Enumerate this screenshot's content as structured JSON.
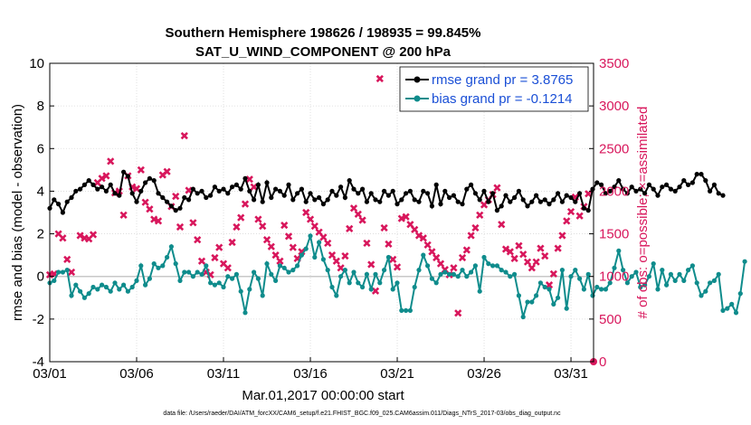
{
  "chart_data": {
    "type": "line",
    "title": "Southern Hemisphere 198626 / 198935 = 99.845%",
    "subtitle": "SAT_U_WIND_COMPONENT @ 200 hPa",
    "xlabel": "Mar.01,2017 00:00:00 start",
    "ylabel": "rmse and bias (model - observation)",
    "y2label": "# of obs: o=possible; ×=assimilated",
    "footer": "data file: /Users/raeder/DAI/ATM_forcXX/CAM6_setup/f.e21.FHIST_BGC.f09_025.CAM6assim.011/Diags_NTrS_2017-03/obs_diag_output.nc",
    "xlim": [
      0,
      31.3
    ],
    "ylim": [
      -4,
      10
    ],
    "y2lim": [
      0,
      3500
    ],
    "x_ticks": [
      0,
      5,
      10,
      15,
      20,
      25,
      30
    ],
    "x_tick_labels": [
      "03/01",
      "03/06",
      "03/11",
      "03/16",
      "03/21",
      "03/26",
      "03/31"
    ],
    "y_ticks": [
      -4,
      -2,
      0,
      2,
      4,
      6,
      8,
      10
    ],
    "y_tick_labels": [
      "-4",
      "-2",
      "0",
      "2",
      "4",
      "6",
      "8",
      "10"
    ],
    "y2_ticks": [
      0,
      500,
      1000,
      1500,
      2000,
      2500,
      3000,
      3500
    ],
    "y2_tick_labels": [
      "0",
      "500",
      "1000",
      "1500",
      "2000",
      "2500",
      "3000",
      "3500"
    ],
    "grid": true,
    "legend_position": "top-right",
    "series": [
      {
        "name": "rmse grand pr = 3.8765",
        "color": "#000000",
        "marker": "circle",
        "step": 0.25,
        "values": [
          3.2,
          3.6,
          3.4,
          3.0,
          3.5,
          3.7,
          4.0,
          4.1,
          4.3,
          4.5,
          4.3,
          4.1,
          4.2,
          4.0,
          4.3,
          3.9,
          3.8,
          4.9,
          4.7,
          3.9,
          3.5,
          4.0,
          4.4,
          4.6,
          4.5,
          3.9,
          3.7,
          3.5,
          3.3,
          3.1,
          3.2,
          3.7,
          3.6,
          4.1,
          3.9,
          4.0,
          3.7,
          3.8,
          4.2,
          4.0,
          4.1,
          3.9,
          4.2,
          4.3,
          4.1,
          4.6,
          4.0,
          3.6,
          4.3,
          3.5,
          4.4,
          3.7,
          4.1,
          4.0,
          3.8,
          4.3,
          3.6,
          3.9,
          4.1,
          3.5,
          3.9,
          3.6,
          3.7,
          3.4,
          3.6,
          4.0,
          3.8,
          4.2,
          3.7,
          4.5,
          4.1,
          3.9,
          4.1,
          3.5,
          3.9,
          3.6,
          3.5,
          4.0,
          3.8,
          4.0,
          3.4,
          3.6,
          3.9,
          4.0,
          3.6,
          3.5,
          4.0,
          3.9,
          3.3,
          4.3,
          3.4,
          4.0,
          3.7,
          3.8,
          3.5,
          3.4,
          4.1,
          4.3,
          3.9,
          3.6,
          4.0,
          3.5,
          3.9,
          3.1,
          3.3,
          3.8,
          3.5,
          3.7,
          4.0,
          3.6,
          3.3,
          3.5,
          3.8,
          3.5,
          3.6,
          3.4,
          3.6,
          3.9,
          3.5,
          3.8,
          3.7,
          3.5,
          3.9,
          3.2,
          3.1,
          4.1,
          4.4,
          4.3,
          3.9,
          4.0,
          4.2,
          4.5,
          4.1,
          3.9,
          4.2,
          4.0,
          4.1,
          3.9,
          4.3,
          4.1,
          3.8,
          4.2,
          4.3,
          4.1,
          4.0,
          4.2,
          4.5,
          4.3,
          4.4,
          4.8,
          4.8,
          4.5,
          4.0,
          4.3,
          3.9,
          3.8
        ]
      },
      {
        "name": "bias grand pr = -0.1214",
        "color": "#0f8c8c",
        "marker": "circle",
        "step": 0.25,
        "values": [
          -0.3,
          -0.2,
          0.2,
          0.2,
          0.3,
          -0.9,
          -0.4,
          -0.7,
          -1.0,
          -0.8,
          -0.5,
          -0.6,
          -0.4,
          -0.5,
          -0.7,
          -0.3,
          -0.6,
          -0.4,
          -0.7,
          -0.5,
          -0.2,
          0.5,
          -0.4,
          -0.1,
          0.6,
          0.4,
          0.5,
          0.9,
          1.4,
          0.6,
          -0.2,
          0.2,
          0.2,
          0.0,
          0.2,
          0.1,
          0.5,
          -0.3,
          -0.4,
          -0.3,
          -0.5,
          0.0,
          -0.1,
          0.1,
          -0.7,
          -1.7,
          -0.6,
          0.2,
          -0.1,
          -0.9,
          0.6,
          0.1,
          -0.2,
          0.5,
          0.4,
          0.2,
          0.3,
          0.5,
          1.0,
          1.3,
          1.9,
          0.9,
          1.6,
          0.8,
          0.3,
          -0.5,
          -0.9,
          0.0,
          0.3,
          -0.3,
          0.2,
          -0.3,
          -0.5,
          0.1,
          -0.6,
          0.1,
          -0.3,
          0.3,
          0.9,
          -0.6,
          -0.3,
          -1.6,
          -1.6,
          -1.6,
          -0.5,
          0.3,
          1.0,
          0.5,
          -0.1,
          -0.3,
          0.1,
          0.2,
          0.1,
          0.1,
          0.0,
          0.3,
          0.0,
          0.2,
          0.5,
          -0.7,
          0.9,
          0.6,
          0.5,
          0.5,
          0.3,
          0.2,
          0.0,
          0.1,
          -0.9,
          -1.9,
          -1.2,
          -1.2,
          -0.9,
          -0.3,
          -0.5,
          -0.6,
          -1.3,
          -1.0,
          0.3,
          -1.5,
          0.0,
          0.3,
          -0.1,
          -0.6,
          0.1,
          -0.9,
          -0.5,
          -0.6,
          -0.6,
          -0.3,
          0.4,
          1.2,
          0.3,
          -0.3,
          0.0,
          0.2,
          -0.5,
          -0.4,
          0.0,
          0.6,
          -0.6,
          0.3,
          -0.4,
          0.1,
          -0.2,
          0.1,
          -0.2,
          0.3,
          0.5,
          -0.3,
          -0.9,
          -0.7,
          -0.3,
          -0.2,
          0.1,
          -1.6,
          -1.5,
          -1.3,
          -1.7,
          -0.8,
          0.7
        ]
      }
    ],
    "obs_possible": {
      "name": "possible",
      "marker": "circle",
      "color": "#d8175c",
      "step": 0.25,
      "values": []
    },
    "obs_assimilated": {
      "name": "assimilated",
      "marker": "x",
      "color": "#d8175c",
      "points": [
        [
          0.0,
          1020
        ],
        [
          0.25,
          1030
        ],
        [
          0.5,
          1500
        ],
        [
          0.75,
          1450
        ],
        [
          1.0,
          1200
        ],
        [
          1.25,
          1050
        ],
        [
          1.75,
          1480
        ],
        [
          2.0,
          1450
        ],
        [
          2.25,
          1440
        ],
        [
          2.5,
          1490
        ],
        [
          2.75,
          2100
        ],
        [
          3.0,
          2150
        ],
        [
          3.25,
          2180
        ],
        [
          3.5,
          2350
        ],
        [
          3.75,
          1980
        ],
        [
          4.0,
          2000
        ],
        [
          4.25,
          1720
        ],
        [
          4.5,
          2180
        ],
        [
          4.75,
          2050
        ],
        [
          5.0,
          2030
        ],
        [
          5.25,
          2250
        ],
        [
          5.5,
          1870
        ],
        [
          5.75,
          1790
        ],
        [
          6.0,
          1670
        ],
        [
          6.25,
          1650
        ],
        [
          6.5,
          2190
        ],
        [
          6.75,
          2230
        ],
        [
          7.0,
          1820
        ],
        [
          7.25,
          1940
        ],
        [
          7.5,
          1580
        ],
        [
          7.75,
          2650
        ],
        [
          8.0,
          2010
        ],
        [
          8.25,
          1630
        ],
        [
          8.5,
          1430
        ],
        [
          8.75,
          1180
        ],
        [
          9.0,
          1050
        ],
        [
          9.25,
          1020
        ],
        [
          9.5,
          1220
        ],
        [
          9.75,
          1340
        ],
        [
          10.0,
          1150
        ],
        [
          10.25,
          1100
        ],
        [
          10.5,
          1400
        ],
        [
          10.75,
          1580
        ],
        [
          11.0,
          1690
        ],
        [
          11.25,
          1850
        ],
        [
          11.5,
          2140
        ],
        [
          11.75,
          2050
        ],
        [
          12.0,
          1670
        ],
        [
          12.25,
          1590
        ],
        [
          12.5,
          1430
        ],
        [
          12.75,
          1350
        ],
        [
          13.0,
          1250
        ],
        [
          13.25,
          1180
        ],
        [
          13.5,
          1600
        ],
        [
          13.75,
          1470
        ],
        [
          14.0,
          1340
        ],
        [
          14.25,
          1210
        ],
        [
          14.5,
          1290
        ],
        [
          14.75,
          1750
        ],
        [
          15.0,
          1670
        ],
        [
          15.25,
          1590
        ],
        [
          15.5,
          1520
        ],
        [
          15.75,
          1460
        ],
        [
          16.0,
          1390
        ],
        [
          16.25,
          1250
        ],
        [
          16.5,
          1180
        ],
        [
          16.75,
          1100
        ],
        [
          17.0,
          1240
        ],
        [
          17.25,
          1560
        ],
        [
          17.5,
          1800
        ],
        [
          17.75,
          1730
        ],
        [
          18.0,
          1660
        ],
        [
          18.25,
          1390
        ],
        [
          18.5,
          1140
        ],
        [
          18.75,
          830
        ],
        [
          19.0,
          3320
        ],
        [
          19.25,
          1570
        ],
        [
          19.5,
          1380
        ],
        [
          19.75,
          1200
        ],
        [
          20.0,
          1110
        ],
        [
          20.25,
          1680
        ],
        [
          20.5,
          1700
        ],
        [
          20.75,
          1610
        ],
        [
          21.0,
          1550
        ],
        [
          21.25,
          1480
        ],
        [
          21.5,
          1450
        ],
        [
          21.75,
          1370
        ],
        [
          22.0,
          1290
        ],
        [
          22.25,
          1220
        ],
        [
          22.5,
          1150
        ],
        [
          22.75,
          1080
        ],
        [
          23.0,
          1020
        ],
        [
          23.25,
          1100
        ],
        [
          23.5,
          570
        ],
        [
          23.75,
          1220
        ],
        [
          24.0,
          1310
        ],
        [
          24.25,
          1480
        ],
        [
          24.5,
          1570
        ],
        [
          24.75,
          1720
        ],
        [
          25.0,
          1840
        ],
        [
          25.25,
          1900
        ],
        [
          25.5,
          1960
        ],
        [
          25.75,
          2040
        ],
        [
          26.0,
          1610
        ],
        [
          26.25,
          1320
        ],
        [
          26.5,
          1290
        ],
        [
          26.75,
          1210
        ],
        [
          27.0,
          1360
        ],
        [
          27.25,
          1260
        ],
        [
          27.5,
          1170
        ],
        [
          27.75,
          1100
        ],
        [
          28.0,
          1170
        ],
        [
          28.25,
          1330
        ],
        [
          28.5,
          1240
        ],
        [
          28.75,
          900
        ],
        [
          29.0,
          1030
        ],
        [
          29.25,
          1330
        ],
        [
          29.5,
          1480
        ],
        [
          29.75,
          1650
        ],
        [
          30.0,
          1760
        ],
        [
          30.25,
          1930
        ],
        [
          30.5,
          1710
        ],
        [
          30.75,
          1820
        ],
        [
          31.0,
          1970
        ]
      ]
    }
  },
  "legend": {
    "rmse_label": "rmse grand pr = 3.8765",
    "bias_label": "bias grand pr = -0.1214"
  }
}
